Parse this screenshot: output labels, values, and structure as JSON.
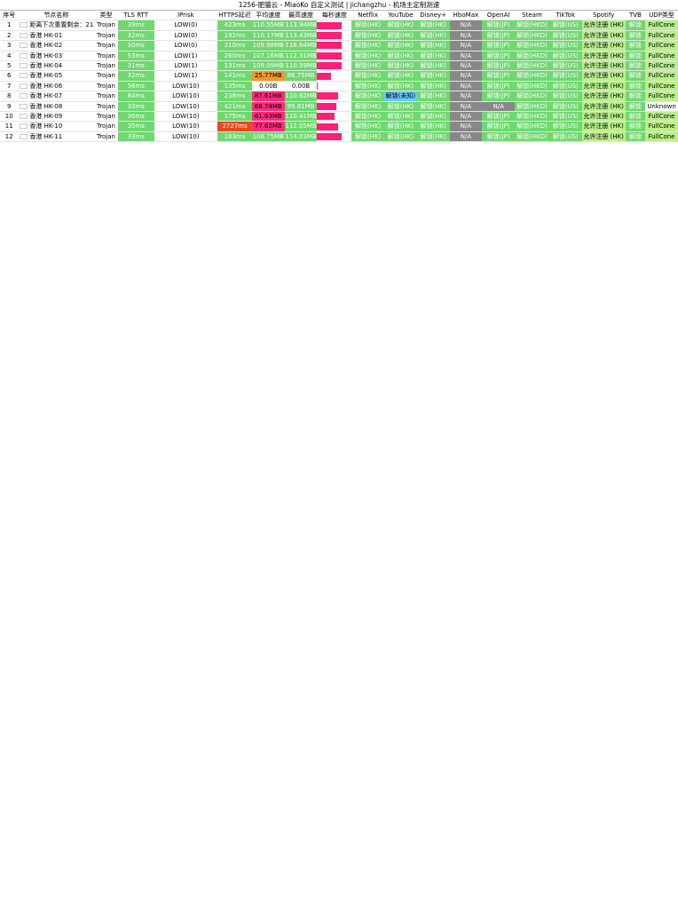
{
  "title": "1256-肥猫云 - MiaoKo 自定义测试 | jichangzhu - 机场主定制测速",
  "headers": [
    "序号",
    "节点名称",
    "类型",
    "TLS RTT",
    "IPrisk",
    "HTTPS延迟",
    "平均速度",
    "最高速度",
    "每秒速度",
    "Netflix",
    "YouTube",
    "Disney+",
    "HboMax",
    "OpenAI",
    "Steam",
    "TikTok",
    "Spotify",
    "TVB",
    "UDP类型"
  ],
  "rows": [
    {
      "id": "1",
      "name": "距离下次重置剩余：21 天",
      "type": "Trojan",
      "rtt": "39ms",
      "ip": "LOW(0)",
      "https": "423ms",
      "avg": "110.55MB",
      "max": "113.94MB",
      "nf": "解锁(HK)",
      "yt": "解锁(HK)",
      "dis": "解锁(HK)",
      "hbo": "N/A",
      "oai": "解锁(JP)",
      "steam": "解锁(HKD)",
      "tt": "解锁(US)",
      "sp": "允许注册 (HK)",
      "tvb": "解锁",
      "udp": "FullCone"
    },
    {
      "id": "2",
      "name": "香港 HK-01",
      "type": "Trojan",
      "rtt": "32ms",
      "ip": "LOW(0)",
      "https": "192ms",
      "avg": "110.17MB",
      "max": "113.43MB",
      "nf": "解锁(HK)",
      "yt": "解锁(HK)",
      "dis": "解锁(HK)",
      "hbo": "N/A",
      "oai": "解锁(JP)",
      "steam": "解锁(HKD)",
      "tt": "解锁(US)",
      "sp": "允许注册 (HK)",
      "tvb": "解锁",
      "udp": "FullCone"
    },
    {
      "id": "3",
      "name": "香港 HK-02",
      "type": "Trojan",
      "rtt": "50ms",
      "ip": "LOW(0)",
      "https": "210ms",
      "avg": "109.98MB",
      "max": "116.64MB",
      "nf": "解锁(HK)",
      "yt": "解锁(HK)",
      "dis": "解锁(HK)",
      "hbo": "N/A",
      "oai": "解锁(JP)",
      "steam": "解锁(HKD)",
      "tt": "解锁(US)",
      "sp": "允许注册 (HK)",
      "tvb": "解锁",
      "udp": "FullCone"
    },
    {
      "id": "4",
      "name": "香港 HK-03",
      "type": "Trojan",
      "rtt": "53ms",
      "ip": "LOW(1)",
      "https": "260ms",
      "avg": "107.16MB",
      "max": "112.31MB",
      "nf": "解锁(HK)",
      "yt": "解锁(HK)",
      "dis": "解锁(HK)",
      "hbo": "N/A",
      "oai": "解锁(JP)",
      "steam": "解锁(HKD)",
      "tt": "解锁(US)",
      "sp": "允许注册 (HK)",
      "tvb": "解锁",
      "udp": "FullCone"
    },
    {
      "id": "5",
      "name": "香港 HK-04",
      "type": "Trojan",
      "rtt": "31ms",
      "ip": "LOW(1)",
      "https": "131ms",
      "avg": "109.09MB",
      "max": "110.59MB",
      "nf": "解锁(HK)",
      "yt": "解锁(HK)",
      "dis": "解锁(HK)",
      "hbo": "N/A",
      "oai": "解锁(JP)",
      "steam": "解锁(HKD)",
      "tt": "解锁(US)",
      "sp": "允许注册 (HK)",
      "tvb": "解锁",
      "udp": "FullCone"
    },
    {
      "id": "6",
      "name": "香港 HK-05",
      "type": "Trojan",
      "rtt": "32ms",
      "ip": "LOW(1)",
      "https": "141ms",
      "avg": "25.77MB",
      "max": "88.75MB",
      "nf": "解锁(HK)",
      "yt": "解锁(HK)",
      "dis": "解锁(HK)",
      "hbo": "N/A",
      "oai": "解锁(JP)",
      "steam": "解锁(HKD)",
      "tt": "解锁(US)",
      "sp": "允许注册 (HK)",
      "tvb": "解锁",
      "udp": "FullCone"
    },
    {
      "id": "7",
      "name": "香港 HK-06",
      "type": "Trojan",
      "rtt": "56ms",
      "ip": "LOW(10)",
      "https": "135ms",
      "avg": "0.00B",
      "max": "0.00B",
      "nf": "解锁(HK)",
      "yt": "解锁(HK)",
      "dis": "解锁(HK)",
      "hbo": "N/A",
      "oai": "解锁(JP)",
      "steam": "解锁(HKD)",
      "tt": "解锁(US)",
      "sp": "允许注册 (HK)",
      "tvb": "解锁",
      "udp": "FullCone"
    },
    {
      "id": "8",
      "name": "香港 HK-07",
      "type": "Trojan",
      "rtt": "84ms",
      "ip": "LOW(10)",
      "https": "238ms",
      "avg": "87.61MB",
      "max": "110.62MB",
      "nf": "解锁(HK)",
      "yt": "解锁(未知)",
      "dis": "解锁(HK)",
      "hbo": "N/A",
      "oai": "解锁(JP)",
      "steam": "解锁(HKD)",
      "tt": "解锁(US)",
      "sp": "允许注册 (HK)",
      "tvb": "解锁",
      "udp": "FullCone"
    },
    {
      "id": "9",
      "name": "香港 HK-08",
      "type": "Trojan",
      "rtt": "33ms",
      "ip": "LOW(10)",
      "https": "421ms",
      "avg": "68.74MB",
      "max": "99.81MB",
      "nf": "解锁(HK)",
      "yt": "解锁(HK)",
      "dis": "解锁(HK)",
      "hbo": "N/A",
      "oai": "N/A",
      "steam": "解锁(HKD)",
      "tt": "解锁(US)",
      "sp": "允许注册 (HK)",
      "tvb": "解锁",
      "udp": "Unknown"
    },
    {
      "id": "10",
      "name": "香港 HK-09",
      "type": "Trojan",
      "rtt": "36ms",
      "ip": "LOW(10)",
      "https": "175ms",
      "avg": "61.63MB",
      "max": "110.41MB",
      "nf": "解锁(HK)",
      "yt": "解锁(HK)",
      "dis": "解锁(HK)",
      "hbo": "N/A",
      "oai": "解锁(JP)",
      "steam": "解锁(HKD)",
      "tt": "解锁(US)",
      "sp": "允许注册 (HK)",
      "tvb": "解锁",
      "udp": "FullCone"
    },
    {
      "id": "11",
      "name": "香港 HK-10",
      "type": "Trojan",
      "rtt": "35ms",
      "ip": "LOW(10)",
      "https": "2727ms",
      "avg": "77.62MB",
      "max": "112.05MB",
      "nf": "解锁(HK)",
      "yt": "解锁(HK)",
      "dis": "解锁(HK)",
      "hbo": "N/A",
      "oai": "解锁(JP)",
      "steam": "解锁(HKD)",
      "tt": "解锁(US)",
      "sp": "允许注册 (HK)",
      "tvb": "解锁",
      "udp": "FullCone"
    },
    {
      "id": "12",
      "name": "香港 HK-11",
      "type": "Trojan",
      "rtt": "33ms",
      "ip": "LOW(10)",
      "https": "183ms",
      "avg": "108.75MB",
      "max": "114.03MB",
      "nf": "解锁(HK)",
      "yt": "解锁(HK)",
      "dis": "解锁(HK)",
      "hbo": "N/A",
      "oai": "解锁(JP)",
      "steam": "解锁(HKD)",
      "tt": "解锁(US)",
      "sp": "允许注册 (HK)",
      "tvb": "解锁",
      "udp": "FullCone"
    }
  ],
  "speed_fractions": [
    0.7,
    0.7,
    0.7,
    0.7,
    0.7,
    0.4,
    0.02,
    0.6,
    0.55,
    0.5,
    0.6,
    0.7
  ],
  "colors": {
    "green": "#6fd86f",
    "light_green": "#b9ef8d",
    "orange": "#f0982c",
    "red": "#e8491f",
    "pink": "#ff2a7a",
    "gray": "#888888"
  }
}
